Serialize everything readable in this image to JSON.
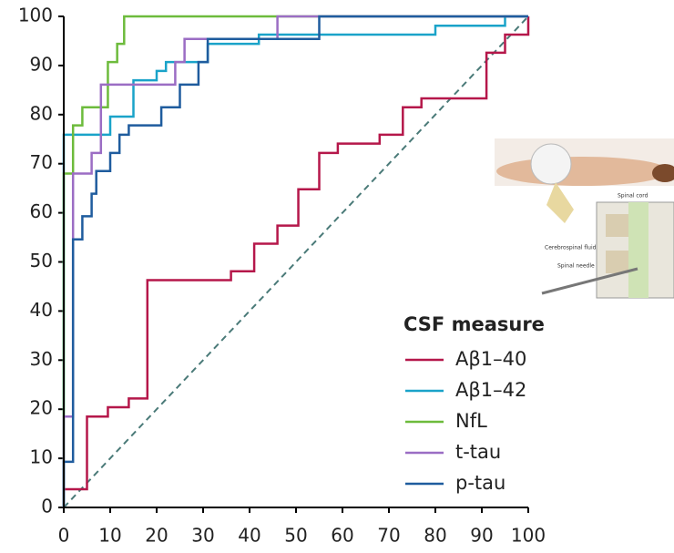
{
  "chart_data": {
    "type": "line",
    "step": true,
    "xlim": [
      0,
      100
    ],
    "xticks": [
      0,
      10,
      20,
      30,
      40,
      50,
      60,
      70,
      80,
      90,
      100
    ],
    "ylim": [
      0,
      100
    ],
    "yticks": [
      0,
      10,
      20,
      30,
      40,
      50,
      60,
      70,
      80,
      90,
      100
    ],
    "reference_line": true,
    "legend_title": "CSF measure",
    "series": [
      {
        "name": "Aβ1–40",
        "color": "#b5174a",
        "x": [
          0,
          5,
          5,
          9.5,
          9.5,
          14,
          14,
          18,
          18,
          36,
          36,
          41,
          41,
          46,
          46,
          50.5,
          50.5,
          55,
          55,
          59,
          59,
          68,
          68,
          73,
          73,
          77,
          77,
          91,
          91,
          95,
          95,
          100,
          100
        ],
        "values": [
          3.7,
          3.7,
          18.5,
          18.5,
          20.4,
          20.4,
          22.2,
          22.2,
          46.3,
          46.3,
          48.1,
          48.1,
          53.7,
          53.7,
          57.4,
          57.4,
          64.8,
          64.8,
          72.2,
          72.2,
          74.1,
          74.1,
          75.9,
          75.9,
          81.5,
          81.5,
          83.3,
          83.3,
          92.6,
          92.6,
          96.3,
          96.3,
          100
        ]
      },
      {
        "name": "Aβ1–42",
        "color": "#1aa3c9",
        "x": [
          0,
          0,
          10,
          10,
          15,
          15,
          20,
          20,
          22,
          22,
          31,
          31,
          42,
          42,
          80,
          80,
          95,
          95,
          100
        ],
        "values": [
          0,
          75.9,
          75.9,
          79.6,
          79.6,
          87,
          87,
          88.9,
          88.9,
          90.7,
          90.7,
          94.4,
          94.4,
          96.3,
          96.3,
          98.1,
          98.1,
          100,
          100
        ]
      },
      {
        "name": "NfL",
        "color": "#6dbb3c",
        "x": [
          0,
          0,
          2,
          2,
          4,
          4,
          9.5,
          9.5,
          11.5,
          11.5,
          13,
          13,
          100
        ],
        "values": [
          0,
          68,
          68,
          77.8,
          77.8,
          81.5,
          81.5,
          90.7,
          90.7,
          94.4,
          94.4,
          100,
          100
        ]
      },
      {
        "name": "t-tau",
        "color": "#9b6dc4",
        "x": [
          0,
          0,
          2,
          2,
          6,
          6,
          8,
          8,
          24,
          24,
          26,
          26,
          46,
          46,
          100
        ],
        "values": [
          0,
          18.5,
          18.5,
          68,
          68,
          72.2,
          72.2,
          86.1,
          86.1,
          90.7,
          90.7,
          95.4,
          95.4,
          100,
          100
        ]
      },
      {
        "name": "p-tau",
        "color": "#1f5c9e",
        "x": [
          0,
          0,
          2,
          2,
          4,
          4,
          6,
          6,
          7,
          7,
          10,
          10,
          12,
          12,
          14,
          14,
          21,
          21,
          25,
          25,
          29,
          29,
          31,
          31,
          55,
          55,
          100
        ],
        "values": [
          0,
          9.3,
          9.3,
          54.6,
          54.6,
          59.3,
          59.3,
          63.9,
          63.9,
          68.5,
          68.5,
          72.2,
          72.2,
          75.9,
          75.9,
          77.8,
          77.8,
          81.5,
          81.5,
          86.1,
          86.1,
          90.7,
          90.7,
          95.4,
          95.4,
          100,
          100
        ]
      }
    ]
  },
  "inset_labels": {
    "spinal_cord": "Spinal cord",
    "csf": "Cerebrospinal fluid",
    "needle": "Spinal needle"
  }
}
